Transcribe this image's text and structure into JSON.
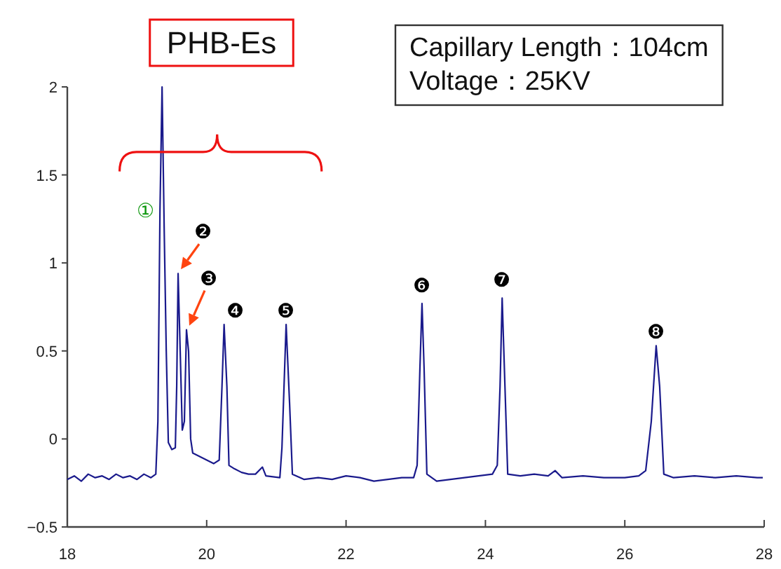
{
  "chart_data": {
    "type": "line",
    "series": [
      {
        "color": "#1a1a8c",
        "x": [
          18,
          18.1,
          18.2,
          18.3,
          18.4,
          18.5,
          18.6,
          18.7,
          18.8,
          18.9,
          19.0,
          19.1,
          19.2,
          19.27,
          19.3,
          19.33,
          19.36,
          19.39,
          19.42,
          19.45,
          19.5,
          19.55,
          19.57,
          19.59,
          19.62,
          19.65,
          19.68,
          19.71,
          19.74,
          19.77,
          19.8,
          19.9,
          20.0,
          20.1,
          20.18,
          20.22,
          20.25,
          20.29,
          20.32,
          20.4,
          20.5,
          20.6,
          20.7,
          20.8,
          20.85,
          21.05,
          21.08,
          21.14,
          21.19,
          21.23,
          21.4,
          21.6,
          21.8,
          22.0,
          22.2,
          22.4,
          22.6,
          22.8,
          22.97,
          23.02,
          23.06,
          23.09,
          23.12,
          23.16,
          23.3,
          23.5,
          23.7,
          23.9,
          24.1,
          24.17,
          24.21,
          24.24,
          24.28,
          24.32,
          24.5,
          24.7,
          24.9,
          25.0,
          25.1,
          25.4,
          25.7,
          26.0,
          26.2,
          26.3,
          26.38,
          26.45,
          26.5,
          26.56,
          26.7,
          27.0,
          27.3,
          27.6,
          27.9,
          27.98
        ],
        "values": [
          -0.23,
          -0.21,
          -0.24,
          -0.2,
          -0.22,
          -0.21,
          -0.23,
          -0.2,
          -0.22,
          -0.21,
          -0.23,
          -0.2,
          -0.22,
          -0.2,
          0.1,
          1.3,
          2.0,
          1.2,
          0.5,
          -0.02,
          -0.06,
          -0.05,
          0.3,
          0.94,
          0.5,
          0.05,
          0.1,
          0.62,
          0.5,
          0.0,
          -0.08,
          -0.1,
          -0.12,
          -0.14,
          -0.12,
          0.3,
          0.65,
          0.3,
          -0.15,
          -0.17,
          -0.19,
          -0.2,
          -0.2,
          -0.16,
          -0.21,
          -0.22,
          -0.05,
          0.65,
          0.2,
          -0.2,
          -0.23,
          -0.22,
          -0.23,
          -0.21,
          -0.22,
          -0.24,
          -0.23,
          -0.22,
          -0.22,
          -0.15,
          0.4,
          0.77,
          0.4,
          -0.2,
          -0.24,
          -0.23,
          -0.22,
          -0.21,
          -0.2,
          -0.15,
          0.3,
          0.8,
          0.3,
          -0.2,
          -0.21,
          -0.2,
          -0.21,
          -0.18,
          -0.22,
          -0.21,
          -0.22,
          -0.22,
          -0.21,
          -0.18,
          0.1,
          0.53,
          0.3,
          -0.2,
          -0.22,
          -0.21,
          -0.22,
          -0.21,
          -0.22,
          -0.22
        ]
      }
    ],
    "xlim": [
      18,
      28
    ],
    "xticks": [
      18,
      20,
      22,
      24,
      26,
      28
    ],
    "ylim": [
      -0.5,
      2
    ],
    "yticks": [
      {
        "value": -0.5,
        "label": "−0.5"
      },
      0,
      0.5,
      1,
      1.5,
      2
    ],
    "grid": false,
    "legend": false,
    "marker": "none",
    "line_style": "solid",
    "annotations": [
      {
        "text": "①",
        "x": 19.33,
        "y": 1.3
      },
      {
        "text": "❷",
        "x": 19.59,
        "y": 0.94
      },
      {
        "text": "❸",
        "x": 19.71,
        "y": 0.62
      },
      {
        "text": "❹",
        "x": 20.25,
        "y": 0.65
      },
      {
        "text": "❺",
        "x": 21.14,
        "y": 0.65
      },
      {
        "text": "❻",
        "x": 23.09,
        "y": 0.77
      },
      {
        "text": "❼",
        "x": 24.24,
        "y": 0.8
      },
      {
        "text": "❽",
        "x": 26.45,
        "y": 0.53
      },
      "PHB-Es",
      "Capillary Length：104cm",
      "Voltage：25KV"
    ]
  }
}
